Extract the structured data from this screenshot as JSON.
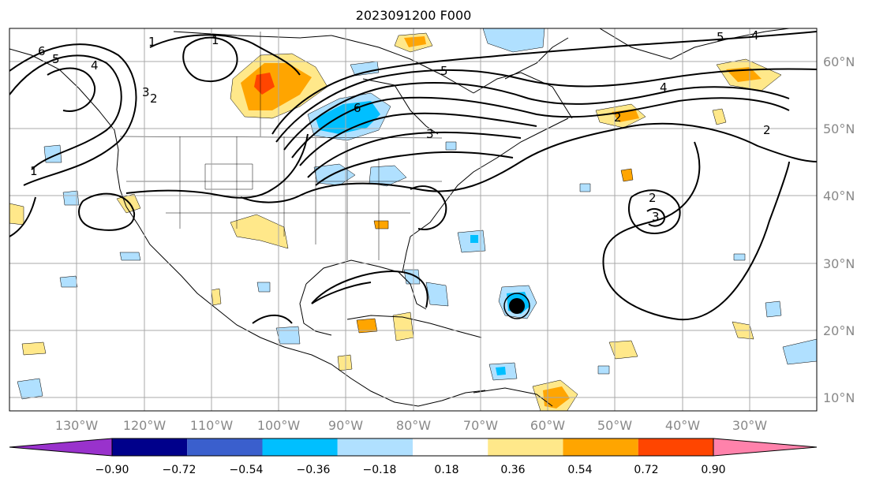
{
  "title": "2023091200 F000",
  "map": {
    "projection": "plate-carree",
    "lon_range": [
      -140,
      -20
    ],
    "lat_range": [
      8,
      65
    ],
    "grid": true,
    "lat_labels": [
      "60°N",
      "50°N",
      "40°N",
      "30°N",
      "20°N",
      "10°N"
    ],
    "lon_labels": [
      "130°W",
      "120°W",
      "110°W",
      "100°W",
      "90°W",
      "80°W",
      "70°W",
      "60°W",
      "50°W",
      "40°W",
      "30°W"
    ],
    "contour_labels": [
      "6",
      "5",
      "4",
      "1",
      "2",
      "3",
      "6",
      "5",
      "4",
      "3",
      "2",
      "1",
      "2",
      "3",
      "5",
      "4",
      "1"
    ]
  },
  "colorbar": {
    "ticks": [
      "−0.90",
      "−0.72",
      "−0.54",
      "−0.36",
      "−0.18",
      "0.18",
      "0.36",
      "0.54",
      "0.72",
      "0.90"
    ],
    "colors": [
      "#9932cc",
      "#00008b",
      "#3a5fcd",
      "#00bfff",
      "#b0e0ff",
      "#ffffff",
      "#ffe88a",
      "#ffa500",
      "#ff4500",
      "#b22222",
      "#ff82ab"
    ],
    "extend": "both"
  }
}
